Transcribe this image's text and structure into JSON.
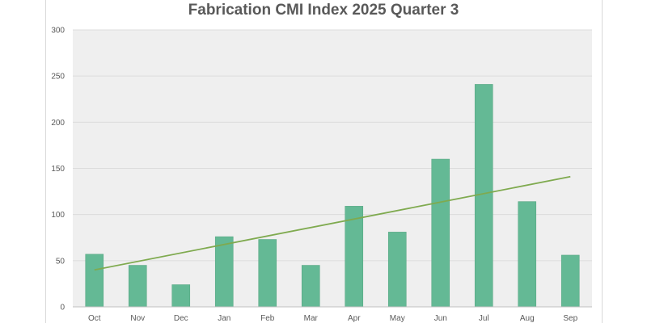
{
  "chart_data": {
    "type": "bar",
    "title": "Fabrication CMI Index 2025 Quarter 3",
    "categories": [
      "Oct",
      "Nov",
      "Dec",
      "Jan",
      "Feb",
      "Mar",
      "Apr",
      "May",
      "Jun",
      "Jul",
      "Aug",
      "Sep"
    ],
    "values": [
      57,
      45,
      24,
      76,
      73,
      45,
      109,
      81,
      160,
      241,
      114,
      56
    ],
    "ylim": [
      0,
      300
    ],
    "yticks": [
      0,
      50,
      100,
      150,
      200,
      250,
      300
    ],
    "trendline": {
      "type": "linear",
      "start": 40,
      "end": 141
    },
    "grid": true,
    "colors": {
      "bar": "#64b995",
      "bar_border": "#5aa885",
      "trendline": "#7faa4f",
      "plot_bg": "#efefef",
      "grid": "#dcdcdc"
    }
  }
}
